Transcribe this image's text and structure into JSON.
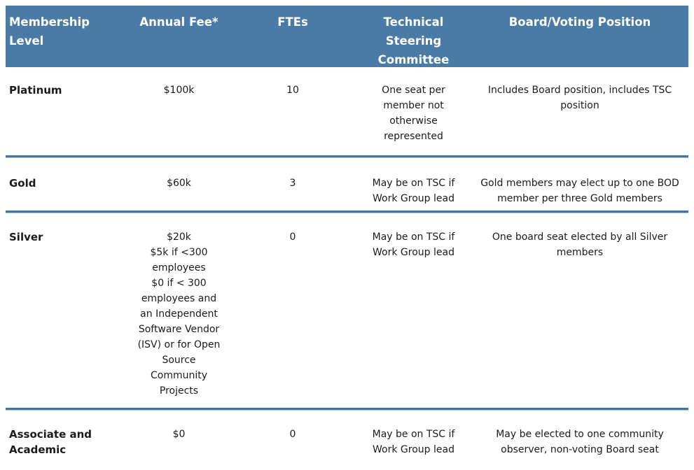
{
  "colors": {
    "header_background": "#4a7aa6",
    "header_text": "#ffffff",
    "divider_blue": "#4374a3",
    "divider_light_blue": "#a9c6df",
    "body_text": "#1b1b1b",
    "page_background": "#ffffff"
  },
  "table": {
    "columns": [
      {
        "label": "Membership Level"
      },
      {
        "label": "Annual Fee*"
      },
      {
        "label": "FTEs"
      },
      {
        "label": "Technical Steering Committee"
      },
      {
        "label": "Board/Voting Position"
      }
    ],
    "rows": [
      {
        "level": "Platinum",
        "fee": "$100k",
        "ftes": "10",
        "tsc": "One seat per member not otherwise represented",
        "board": "Includes Board position, includes TSC position"
      },
      {
        "level": "Gold",
        "fee": "$60k",
        "ftes": "3",
        "tsc": "May be on TSC if Work Group lead",
        "board": "Gold members may elect up to one BOD member per three Gold members"
      },
      {
        "level": "Silver",
        "fee": "$20k\n$5k if <300 employees\n$0 if < 300 employees and an Independent Software Vendor (ISV) or for Open Source Community Projects",
        "ftes": "0",
        "tsc": "May be on TSC if Work Group lead",
        "board": "One board seat elected by all Silver members"
      },
      {
        "level": "Associate and Academic",
        "fee": "$0",
        "ftes": "0",
        "tsc": "May be on TSC if Work Group lead",
        "board": "May be elected to one community observer, non-voting Board seat"
      }
    ]
  }
}
